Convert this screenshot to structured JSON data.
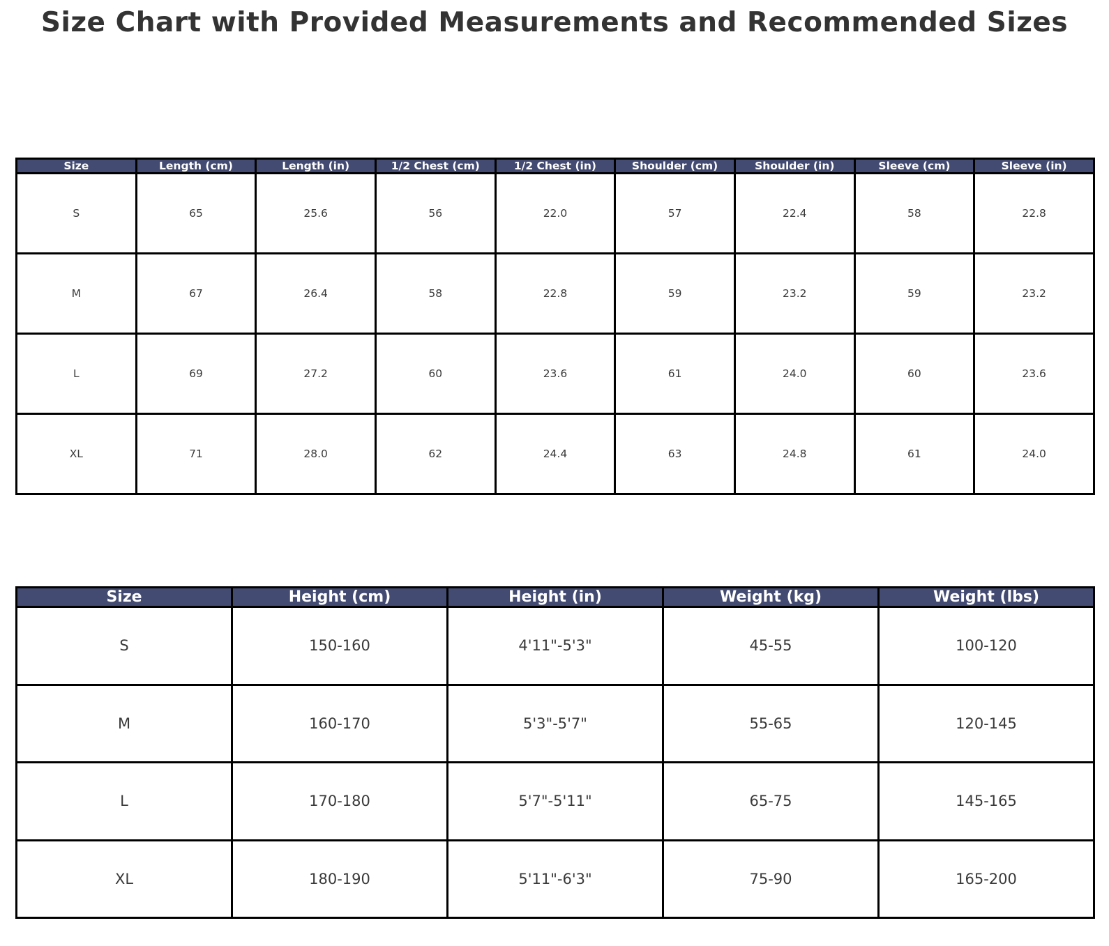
{
  "page": {
    "title": "Size Chart with Provided Measurements and Recommended Sizes"
  },
  "appearance": {
    "header_background": "#434B72",
    "header_text_color": "#ffffff",
    "cell_text_color": "#3a3a3a",
    "border_color": "#000000",
    "title_color": "#333333",
    "page_background": "#ffffff"
  },
  "chart_data": [
    {
      "type": "table",
      "title": "Size Chart with Provided Measurements and Recommended Sizes",
      "name": "provided-measurements",
      "columns": [
        "Size",
        "Length (cm)",
        "Length (in)",
        "1/2 Chest (cm)",
        "1/2 Chest (in)",
        "Shoulder (cm)",
        "Shoulder (in)",
        "Sleeve (cm)",
        "Sleeve (in)"
      ],
      "rows": [
        [
          "S",
          "65",
          "25.6",
          "56",
          "22.0",
          "57",
          "22.4",
          "58",
          "22.8"
        ],
        [
          "M",
          "67",
          "26.4",
          "58",
          "22.8",
          "59",
          "23.2",
          "59",
          "23.2"
        ],
        [
          "L",
          "69",
          "27.2",
          "60",
          "23.6",
          "61",
          "24.0",
          "60",
          "23.6"
        ],
        [
          "XL",
          "71",
          "28.0",
          "62",
          "24.4",
          "63",
          "24.8",
          "61",
          "24.0"
        ]
      ]
    },
    {
      "type": "table",
      "name": "recommended-sizes",
      "columns": [
        "Size",
        "Height (cm)",
        "Height (in)",
        "Weight (kg)",
        "Weight (lbs)"
      ],
      "rows": [
        [
          "S",
          "150-160",
          "4'11\"-5'3\"",
          "45-55",
          "100-120"
        ],
        [
          "M",
          "160-170",
          "5'3\"-5'7\"",
          "55-65",
          "120-145"
        ],
        [
          "L",
          "170-180",
          "5'7\"-5'11\"",
          "65-75",
          "145-165"
        ],
        [
          "XL",
          "180-190",
          "5'11\"-6'3\"",
          "75-90",
          "165-200"
        ]
      ]
    }
  ]
}
